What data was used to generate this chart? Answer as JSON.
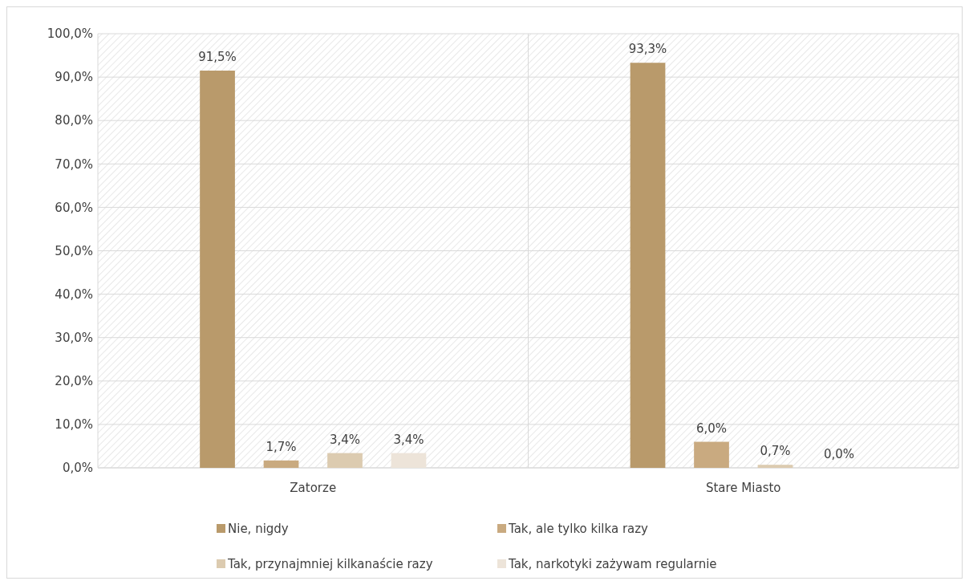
{
  "chart_data": {
    "type": "bar",
    "categories": [
      "Zatorze",
      "Stare Miasto"
    ],
    "series": [
      {
        "name": "Nie, nigdy",
        "color": "#b99a6b",
        "values": [
          91.5,
          93.3
        ]
      },
      {
        "name": "Tak, ale tylko kilka razy",
        "color": "#c9aa80",
        "values": [
          1.7,
          6.0
        ]
      },
      {
        "name": "Tak, przynajmniej kilkanaście razy",
        "color": "#dccbb0",
        "values": [
          3.4,
          0.7
        ]
      },
      {
        "name": "Tak, narkotyki zażywam regularnie",
        "color": "#ede4d9",
        "values": [
          3.4,
          0.0
        ]
      }
    ],
    "value_labels": [
      [
        "91,5%",
        "93,3%"
      ],
      [
        "1,7%",
        "6,0%"
      ],
      [
        "3,4%",
        "0,7%"
      ],
      [
        "3,4%",
        "0,0%"
      ]
    ],
    "ylim": [
      0,
      100
    ],
    "yticks": [
      {
        "value": 0,
        "label": "0,0%"
      },
      {
        "value": 10,
        "label": "10,0%"
      },
      {
        "value": 20,
        "label": "20,0%"
      },
      {
        "value": 30,
        "label": "30,0%"
      },
      {
        "value": 40,
        "label": "40,0%"
      },
      {
        "value": 50,
        "label": "50,0%"
      },
      {
        "value": 60,
        "label": "60,0%"
      },
      {
        "value": 70,
        "label": "70,0%"
      },
      {
        "value": 80,
        "label": "80,0%"
      },
      {
        "value": 90,
        "label": "90,0%"
      },
      {
        "value": 100,
        "label": "100,0%"
      }
    ],
    "grid": true,
    "legend": "bottom"
  }
}
